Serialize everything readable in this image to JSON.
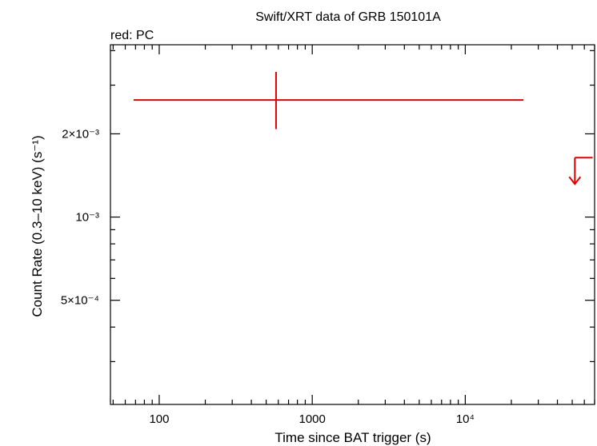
{
  "chart_data": {
    "type": "scatter",
    "title": "Swift/XRT data of GRB 150101A",
    "subtitle": "red: PC",
    "xlabel": "Time since BAT trigger (s)",
    "ylabel": "Count Rate (0.3–10 keV) (s⁻¹)",
    "xscale": "log",
    "yscale": "log",
    "xlim": [
      48,
      70000
    ],
    "ylim": [
      0.00021,
      0.0042
    ],
    "x_tick_labels": [
      {
        "value": 100,
        "text": "100"
      },
      {
        "value": 1000,
        "text": "1000"
      },
      {
        "value": 10000,
        "text": "10⁴"
      }
    ],
    "y_tick_labels": [
      {
        "value": 0.0005,
        "text": "5×10⁻⁴"
      },
      {
        "value": 0.001,
        "text": "10⁻³"
      },
      {
        "value": 0.002,
        "text": "2×10⁻³"
      }
    ],
    "grid": false,
    "series": [
      {
        "name": "PC",
        "color": "#e00000",
        "points": [
          {
            "x": 580,
            "xmin": 68,
            "xmax": 24000,
            "y": 0.00265,
            "ymin": 0.00208,
            "ymax": 0.00335
          }
        ],
        "upper_limits": [
          {
            "x": 52000,
            "xmin": 52000,
            "xmax": 68000,
            "y": 0.00164
          }
        ]
      }
    ]
  }
}
